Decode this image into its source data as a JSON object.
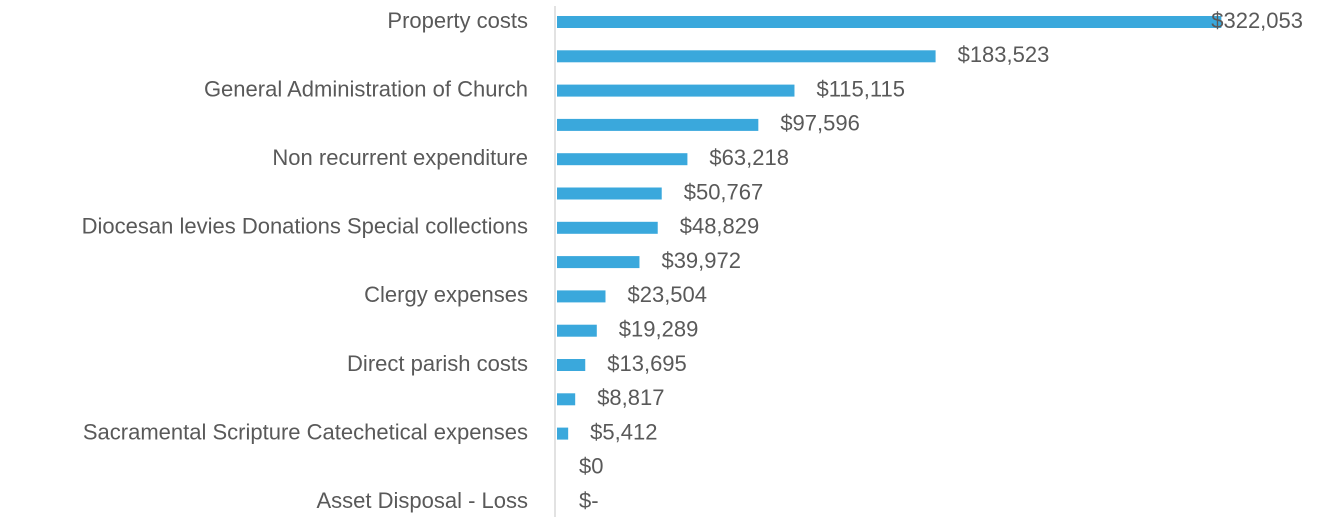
{
  "chart_data": {
    "type": "bar",
    "orientation": "horizontal",
    "categories": [
      "Property costs",
      null,
      "General Administration of Church",
      null,
      "Non recurrent expenditure",
      null,
      "Diocesan levies Donations Special collections",
      null,
      "Clergy expenses",
      null,
      "Direct parish costs",
      null,
      "Sacramental Scripture Catechetical expenses",
      null,
      "Asset Disposal - Loss"
    ],
    "values": [
      322053,
      183523,
      115115,
      97596,
      63218,
      50767,
      48829,
      39972,
      23504,
      19289,
      13695,
      8817,
      5412,
      0,
      0
    ],
    "value_labels": [
      "$322,053",
      "$183,523",
      "$115,115",
      "$97,596",
      "$63,218",
      "$50,767",
      "$48,829",
      "$39,972",
      "$23,504",
      "$19,289",
      "$13,695",
      "$8,817",
      "$5,412",
      "$0",
      "$-"
    ],
    "color": "#3aa8dc",
    "xlim": [
      0,
      350000
    ]
  }
}
